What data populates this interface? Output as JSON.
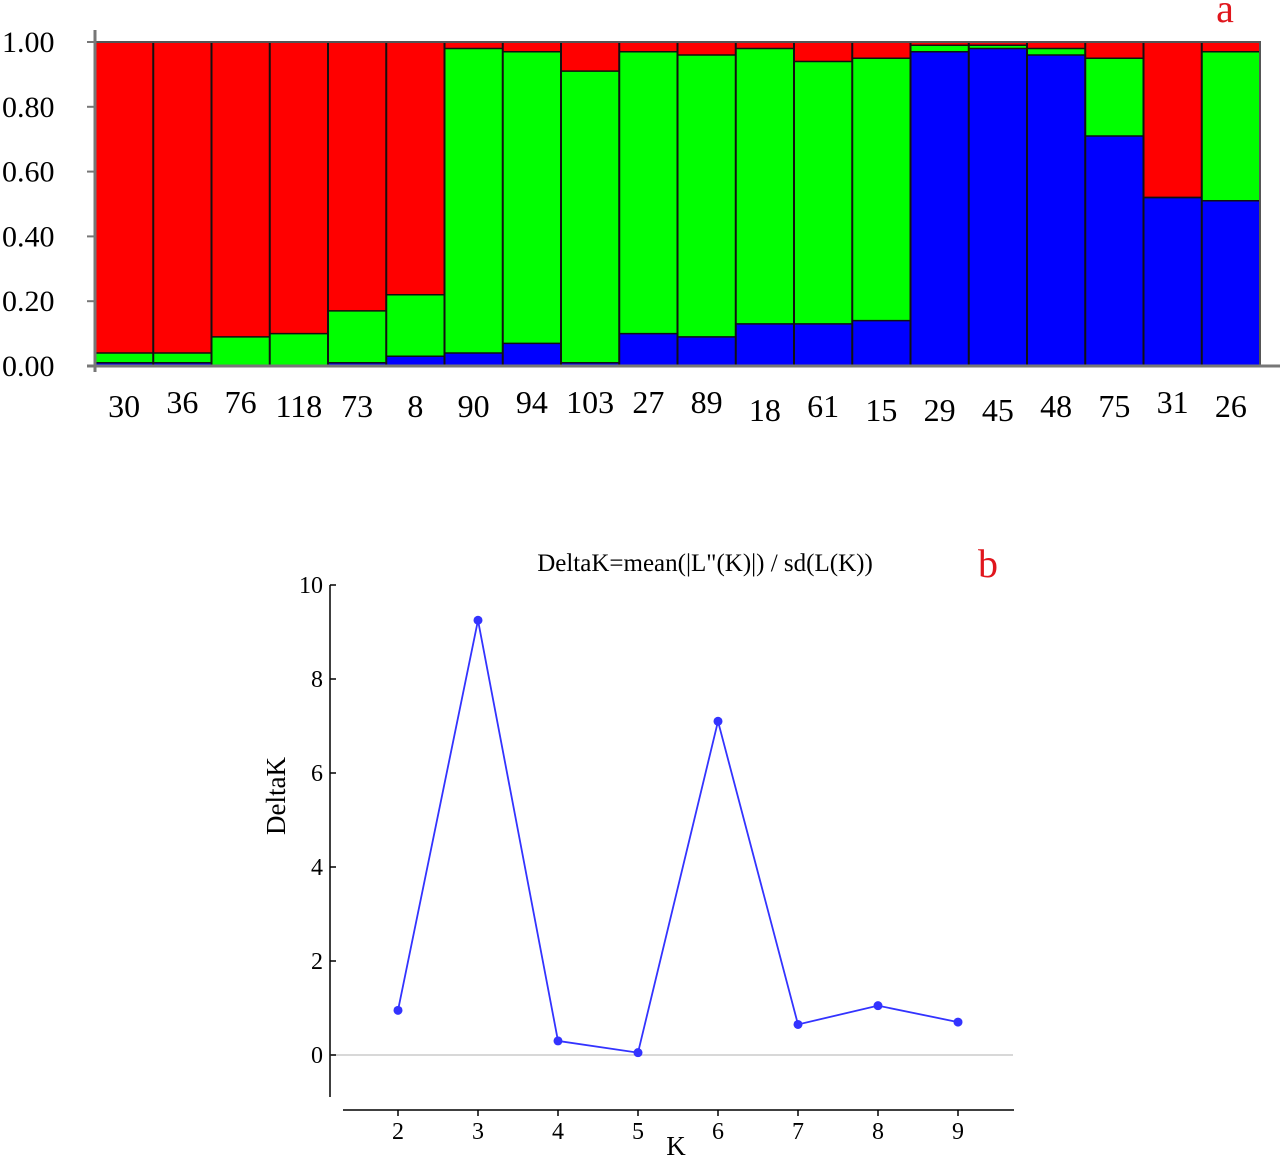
{
  "chart_data": [
    {
      "id": "a",
      "type": "bar",
      "stacked": true,
      "panel_label": "a",
      "title": "",
      "xlabel": "",
      "ylabel": "",
      "ylim": [
        0,
        1
      ],
      "ytick_labels": [
        "0.00",
        "0.20",
        "0.40",
        "0.60",
        "0.80",
        "1.00"
      ],
      "categories": [
        "30",
        "36",
        "76",
        "118",
        "73",
        "8",
        "90",
        "94",
        "103",
        "27",
        "89",
        "18",
        "61",
        "15",
        "29",
        "45",
        "48",
        "75",
        "31",
        "26"
      ],
      "series": [
        {
          "name": "blue",
          "color": "#0000ff",
          "values": [
            0.01,
            0.01,
            0.0,
            0.0,
            0.01,
            0.03,
            0.04,
            0.07,
            0.01,
            0.1,
            0.09,
            0.13,
            0.13,
            0.14,
            0.97,
            0.98,
            0.96,
            0.71,
            0.52,
            0.51
          ]
        },
        {
          "name": "green",
          "color": "#00ff00",
          "values": [
            0.03,
            0.03,
            0.09,
            0.1,
            0.16,
            0.19,
            0.94,
            0.9,
            0.9,
            0.87,
            0.87,
            0.85,
            0.81,
            0.81,
            0.02,
            0.01,
            0.02,
            0.24,
            0.0,
            0.46
          ]
        },
        {
          "name": "red",
          "color": "#ff0000",
          "values": [
            0.96,
            0.96,
            0.91,
            0.9,
            0.83,
            0.78,
            0.02,
            0.03,
            0.09,
            0.03,
            0.04,
            0.02,
            0.06,
            0.05,
            0.01,
            0.01,
            0.02,
            0.05,
            0.48,
            0.03
          ]
        }
      ]
    },
    {
      "id": "b",
      "type": "line",
      "panel_label": "b",
      "title": "DeltaK=mean(|L\"(K)|) / sd(L(K))",
      "xlabel": "K",
      "ylabel": "DeltaK",
      "color": "#3333ff",
      "x": [
        2,
        3,
        4,
        5,
        6,
        7,
        8,
        9
      ],
      "y": [
        0.95,
        9.25,
        0.3,
        0.05,
        7.1,
        0.65,
        1.05,
        0.7
      ],
      "xlim": [
        1.45,
        9.7
      ],
      "ylim": [
        -0.9,
        10
      ],
      "xtick_labels": [
        "2",
        "3",
        "4",
        "5",
        "6",
        "7",
        "8",
        "9"
      ],
      "ytick_labels": [
        "0",
        "2",
        "4",
        "6",
        "8",
        "10"
      ],
      "ytick_values": [
        0,
        2,
        4,
        6,
        8,
        10
      ],
      "zero_line": true
    }
  ]
}
